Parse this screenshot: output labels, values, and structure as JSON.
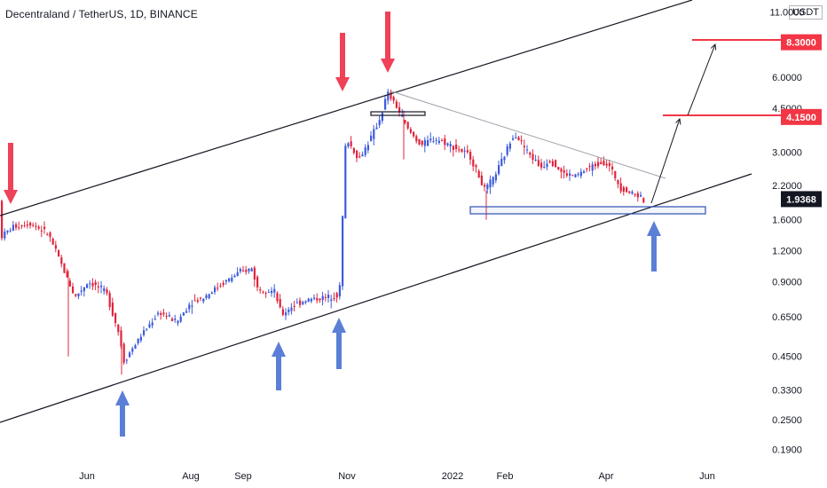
{
  "chart_data": {
    "type": "candlestick",
    "title": "Decentraland / TetherUS, 1D, BINANCE",
    "unit": "USDT",
    "scale": "log",
    "ylim": [
      0.17,
      11.5
    ],
    "y_ticks": [
      "11.0000",
      "6.0000",
      "4.5000",
      "3.0000",
      "2.2000",
      "1.6000",
      "1.2000",
      "0.9000",
      "0.6500",
      "0.4500",
      "0.3300",
      "0.2500",
      "0.1900"
    ],
    "x_ticks": [
      "Jun",
      "Aug",
      "Sep",
      "Nov",
      "2022",
      "Feb",
      "Apr",
      "Jun"
    ],
    "price_labels": [
      {
        "text": "8.3000",
        "color": "#f23645"
      },
      {
        "text": "4.1500",
        "color": "#f23645"
      },
      {
        "text": "1.9368",
        "color": "#131722"
      }
    ],
    "colors": {
      "up": "#3d5bdb",
      "down": "#e0243c",
      "support": "#2f4fb3",
      "arrow_down": "#ef4157",
      "arrow_up": "#5b7fd6"
    }
  }
}
